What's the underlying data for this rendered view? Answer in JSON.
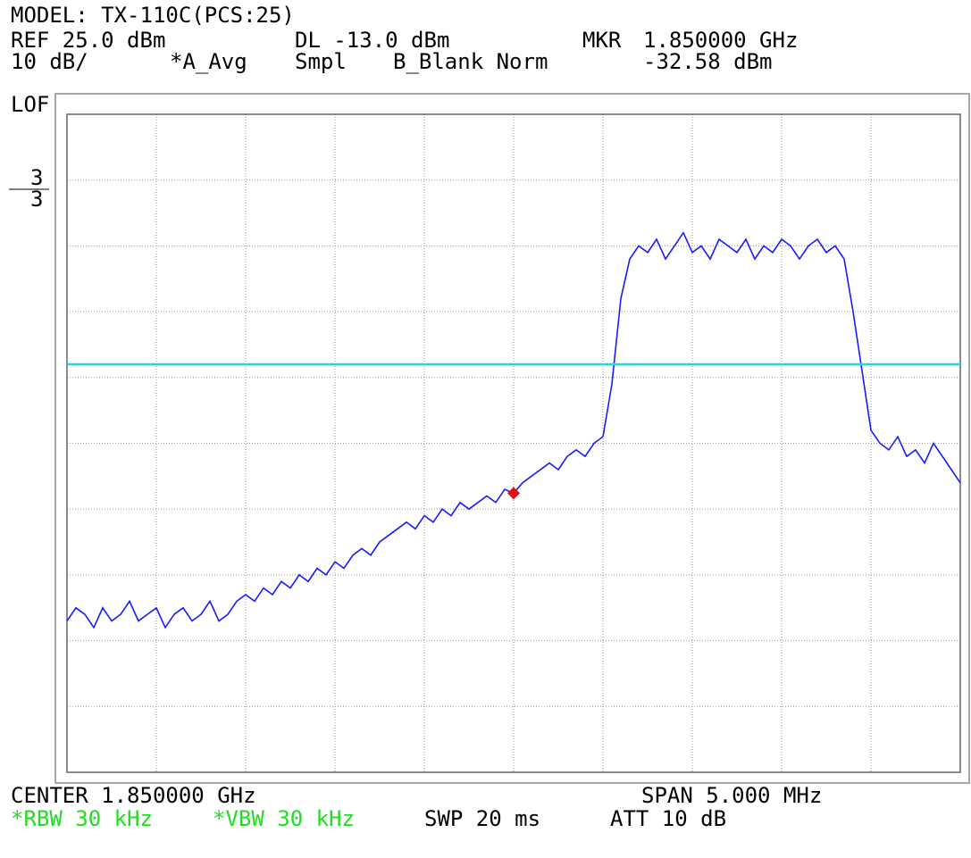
{
  "header": {
    "model": "MODEL: TX-110C(PCS:25)",
    "ref": "REF 25.0 dBm",
    "dl": "DL -13.0 dBm",
    "mkr": "MKR",
    "mkr_freq": "1.850000 GHz",
    "scale": "10 dB/",
    "avg": "*A_Avg",
    "smpl": "Smpl",
    "blank": "B_Blank Norm",
    "mkr_level": "-32.58 dBm",
    "lof": "LOF",
    "trace_a": "3",
    "trace_b": "3"
  },
  "footer": {
    "center": "CENTER 1.850000 GHz",
    "span": "SPAN 5.000 MHz",
    "rbw": "*RBW 30 kHz",
    "vbw": "*VBW 30 kHz",
    "swp": "SWP 20 ms",
    "att": "ATT 10 dB"
  },
  "chart_data": {
    "type": "line",
    "x": [
      1847.5,
      1847.55,
      1847.6,
      1847.65,
      1847.7,
      1847.75,
      1847.8,
      1847.85,
      1847.9,
      1847.95,
      1848.0,
      1848.05,
      1848.1,
      1848.15,
      1848.2,
      1848.25,
      1848.3,
      1848.35,
      1848.4,
      1848.45,
      1848.5,
      1848.55,
      1848.6,
      1848.65,
      1848.7,
      1848.75,
      1848.8,
      1848.85,
      1848.9,
      1848.95,
      1849.0,
      1849.05,
      1849.1,
      1849.15,
      1849.2,
      1849.25,
      1849.3,
      1849.35,
      1849.4,
      1849.45,
      1849.5,
      1849.55,
      1849.6,
      1849.65,
      1849.7,
      1849.75,
      1849.8,
      1849.85,
      1849.9,
      1849.95,
      1850.0,
      1850.05,
      1850.1,
      1850.15,
      1850.2,
      1850.25,
      1850.3,
      1850.35,
      1850.4,
      1850.45,
      1850.5,
      1850.55,
      1850.6,
      1850.65,
      1850.7,
      1850.75,
      1850.8,
      1850.85,
      1850.9,
      1850.95,
      1851.0,
      1851.05,
      1851.1,
      1851.15,
      1851.2,
      1851.25,
      1851.3,
      1851.35,
      1851.4,
      1851.45,
      1851.5,
      1851.55,
      1851.6,
      1851.65,
      1851.7,
      1851.75,
      1851.8,
      1851.85,
      1851.9,
      1851.95,
      1852.0,
      1852.05,
      1852.1,
      1852.15,
      1852.2,
      1852.25,
      1852.3,
      1852.35,
      1852.4,
      1852.45,
      1852.5
    ],
    "series": [
      {
        "color": "#1a1aff",
        "values": [
          -52,
          -50,
          -51,
          -53,
          -50,
          -52,
          -51,
          -49,
          -52,
          -51,
          -50,
          -53,
          -51,
          -50,
          -52,
          -51,
          -49,
          -52,
          -51,
          -49,
          -48,
          -49,
          -47,
          -48,
          -46,
          -47,
          -45,
          -46,
          -44,
          -45,
          -43,
          -44,
          -42,
          -41,
          -42,
          -40,
          -39,
          -38,
          -37,
          -38,
          -36,
          -37,
          -35,
          -36,
          -34,
          -35,
          -34,
          -33,
          -34,
          -32,
          -32.6,
          -31,
          -30,
          -29,
          -28,
          -29,
          -27,
          -26,
          -27,
          -25,
          -24,
          -16,
          -3,
          3,
          5,
          4,
          6,
          3,
          5,
          7,
          4,
          5,
          3,
          6,
          5,
          4,
          6,
          3,
          5,
          4,
          6,
          5,
          3,
          5,
          6,
          4,
          5,
          3,
          -5,
          -14,
          -23,
          -25,
          -26,
          -24,
          -27,
          -26,
          -28,
          -25,
          -27,
          -29,
          -31
        ]
      }
    ],
    "xlim": [
      1847.5,
      1852.5
    ],
    "ylim": [
      -75,
      25
    ],
    "xticks": [
      1847.5,
      1848,
      1848.5,
      1849,
      1849.5,
      1850,
      1850.5,
      1851,
      1851.5,
      1852,
      1852.5
    ],
    "yticks": [
      -75,
      -65,
      -55,
      -45,
      -35,
      -25,
      -15,
      -5,
      5,
      15,
      25
    ],
    "grid": true,
    "display_line": {
      "value": -13,
      "color": "#22d8e0"
    },
    "marker": {
      "x": 1850,
      "value": -32.58,
      "color": "#e01010"
    }
  }
}
